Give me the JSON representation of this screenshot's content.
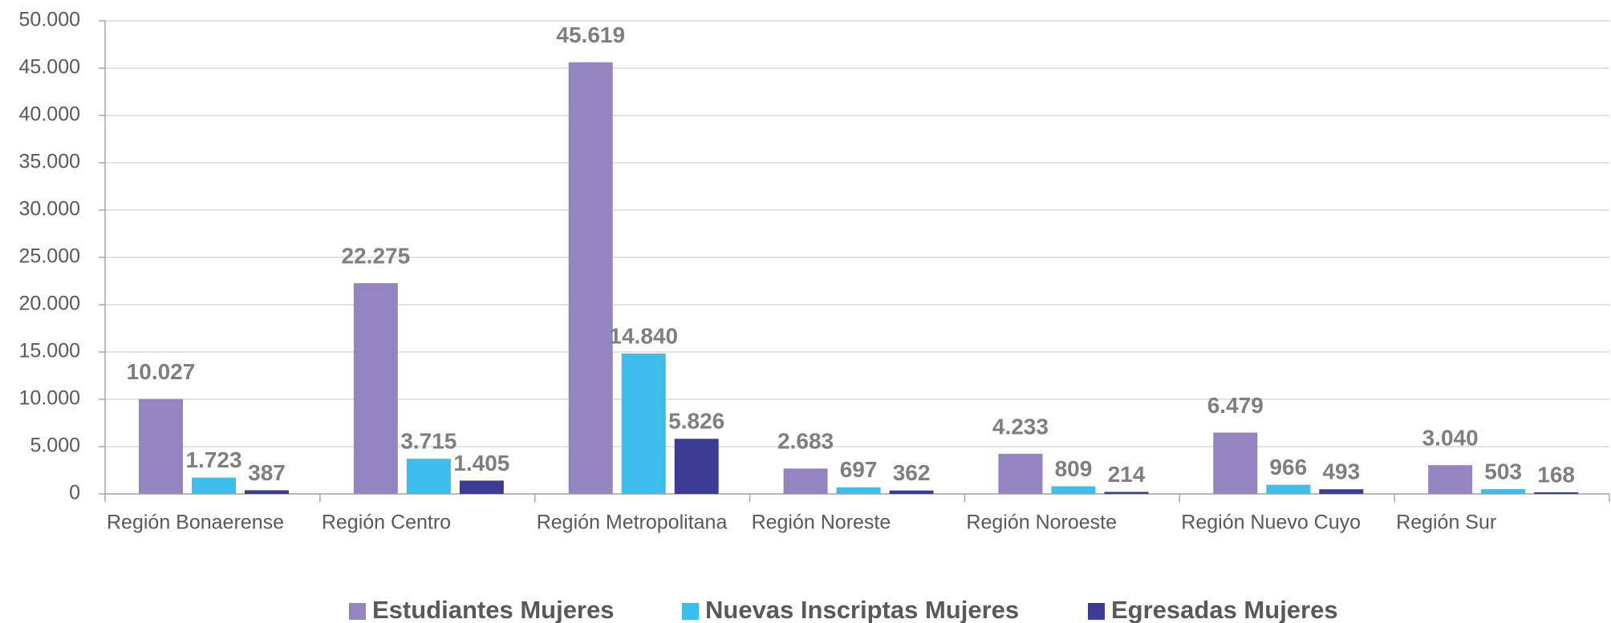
{
  "chart_data": {
    "type": "bar",
    "categories": [
      "Región Bonaerense",
      "Región Centro",
      "Región Metropolitana",
      "Región Noreste",
      "Región Noroeste",
      "Región Nuevo Cuyo",
      "Región Sur"
    ],
    "series": [
      {
        "name": "Estudiantes Mujeres",
        "color": "#9484bf",
        "values": [
          10027,
          22275,
          45619,
          2683,
          4233,
          6479,
          3040
        ],
        "value_labels": [
          "10.027",
          "22.275",
          "45.619",
          "2.683",
          "4.233",
          "6.479",
          "3.040"
        ]
      },
      {
        "name": "Nuevas Inscriptas Mujeres",
        "color": "#3dbdec",
        "values": [
          1723,
          3715,
          14840,
          697,
          809,
          966,
          503
        ],
        "value_labels": [
          "1.723",
          "3.715",
          "14.840",
          "697",
          "809",
          "966",
          "503"
        ]
      },
      {
        "name": "Egresadas Mujeres",
        "color": "#3c3c94",
        "values": [
          387,
          1405,
          5826,
          362,
          214,
          493,
          168
        ],
        "value_labels": [
          "387",
          "1.405",
          "5.826",
          "362",
          "214",
          "493",
          "168"
        ]
      }
    ],
    "ylim": [
      0,
      50000
    ],
    "yticks": [
      0,
      {
        "value": 5000,
        "label": "5.000"
      },
      {
        "value": 10000,
        "label": "10.000"
      },
      {
        "value": 15000,
        "label": "15.000"
      },
      {
        "value": 20000,
        "label": "20.000"
      },
      {
        "value": 25000,
        "label": "25.000"
      },
      {
        "value": 30000,
        "label": "30.000"
      },
      {
        "value": 35000,
        "label": "35.000"
      },
      {
        "value": 40000,
        "label": "40.000"
      },
      {
        "value": 45000,
        "label": "45.000"
      },
      {
        "value": 50000,
        "label": "50.000"
      }
    ],
    "grid": true,
    "legend": "bottom"
  }
}
